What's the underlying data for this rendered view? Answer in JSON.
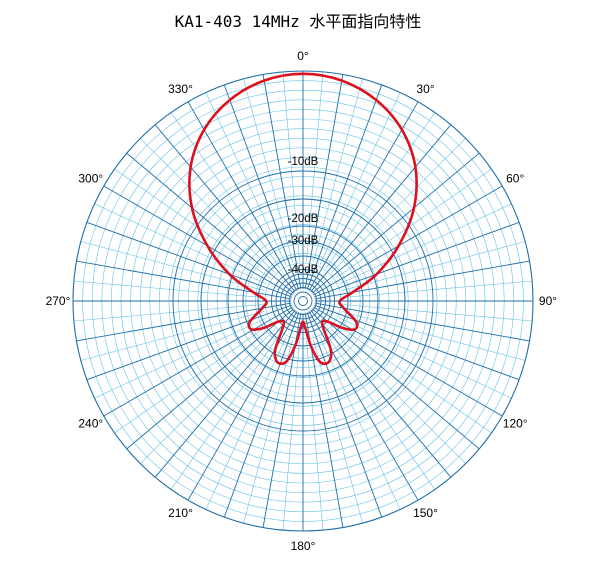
{
  "chart_data": {
    "type": "polar-line",
    "title": "KA1-403 14MHz 水平面指向特性",
    "angle_tick_labels": [
      "0°",
      "30°",
      "60°",
      "90°",
      "120°",
      "150°",
      "180°",
      "210°",
      "240°",
      "270°",
      "300°",
      "330°"
    ],
    "radial_tick_labels": [
      "-10dB",
      "-20dB",
      "-30dB",
      "-40dB"
    ],
    "colors": {
      "pattern": "#dd1020",
      "grid_major": "#1f6fa8",
      "grid_minor": "#66c0e6"
    },
    "series": [
      {
        "angles_deg": [
          0,
          10,
          20,
          30,
          40,
          50,
          60,
          70,
          80,
          90,
          100,
          110,
          115,
          120,
          125,
          130,
          140,
          150,
          155,
          160,
          165,
          170,
          175,
          180,
          185,
          190,
          195,
          200,
          205,
          210,
          220,
          230,
          235,
          240,
          245,
          250,
          260,
          270,
          280,
          290,
          300,
          310,
          320,
          330,
          340,
          350
        ],
        "radius_fraction": [
          0.988,
          0.973,
          0.93,
          0.86,
          0.76,
          0.63,
          0.48,
          0.34,
          0.22,
          0.16,
          0.18,
          0.24,
          0.26,
          0.25,
          0.2,
          0.14,
          0.13,
          0.24,
          0.28,
          0.29,
          0.27,
          0.2,
          0.12,
          0.09,
          0.12,
          0.2,
          0.27,
          0.29,
          0.28,
          0.24,
          0.13,
          0.14,
          0.2,
          0.25,
          0.26,
          0.24,
          0.18,
          0.16,
          0.22,
          0.34,
          0.48,
          0.63,
          0.76,
          0.86,
          0.93,
          0.973
        ]
      }
    ]
  }
}
